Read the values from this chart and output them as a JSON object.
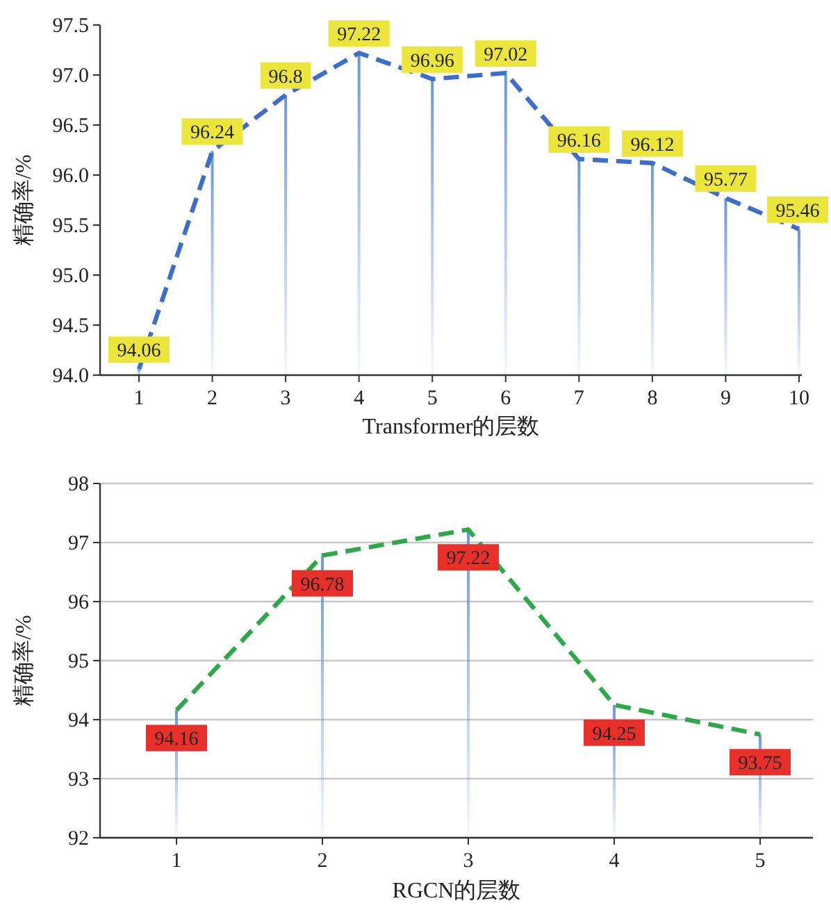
{
  "chart_data": [
    {
      "type": "line",
      "categories": [
        "1",
        "2",
        "3",
        "4",
        "5",
        "6",
        "7",
        "8",
        "9",
        "10"
      ],
      "series": [
        {
          "type": "bar",
          "color": "#5b8bd6",
          "values": [
            94.06,
            96.24,
            96.8,
            97.22,
            96.96,
            97.02,
            96.16,
            96.12,
            95.77,
            95.46
          ]
        },
        {
          "color": "#3d6ec9",
          "values": [
            94.06,
            96.24,
            96.8,
            97.22,
            96.96,
            97.02,
            96.16,
            96.12,
            95.77,
            95.46
          ],
          "value_labels": [
            "94.06",
            "96.24",
            "96.8",
            "97.22",
            "96.96",
            "97.02",
            "96.16",
            "96.12",
            "95.77",
            "95.46"
          ]
        }
      ],
      "ylim": [
        94,
        97.5
      ],
      "yticks": [
        {
          "value": 94,
          "label": "94.0"
        },
        {
          "value": 94.5,
          "label": "94.5"
        },
        {
          "value": 95,
          "label": "95.0"
        },
        {
          "value": 95.5,
          "label": "95.5"
        },
        {
          "value": 96,
          "label": "96.0"
        },
        {
          "value": 96.5,
          "label": "96.5"
        },
        {
          "value": 97,
          "label": "97.0"
        },
        {
          "value": 97.5,
          "label": "97.5"
        }
      ],
      "xlabel": "Transformer的层数",
      "ylabel": "精确率/%",
      "line_style": "dashed",
      "grid": false
    },
    {
      "type": "line",
      "categories": [
        "1",
        "2",
        "3",
        "4",
        "5"
      ],
      "series": [
        {
          "type": "bar",
          "color": "#5b8bd6",
          "values": [
            94.16,
            96.78,
            97.22,
            94.25,
            93.75
          ]
        },
        {
          "color": "#2ea84a",
          "values": [
            94.16,
            96.78,
            97.22,
            94.25,
            93.75
          ],
          "value_labels": [
            "94.16",
            "96.78",
            "97.22",
            "94.25",
            "93.75"
          ]
        }
      ],
      "ylim": [
        92,
        98
      ],
      "yticks": [
        92,
        93,
        94,
        95,
        96,
        97,
        98
      ],
      "xlabel": "RGCN的层数",
      "ylabel": "精确率/%",
      "line_style": "dashed",
      "grid": "y"
    }
  ]
}
